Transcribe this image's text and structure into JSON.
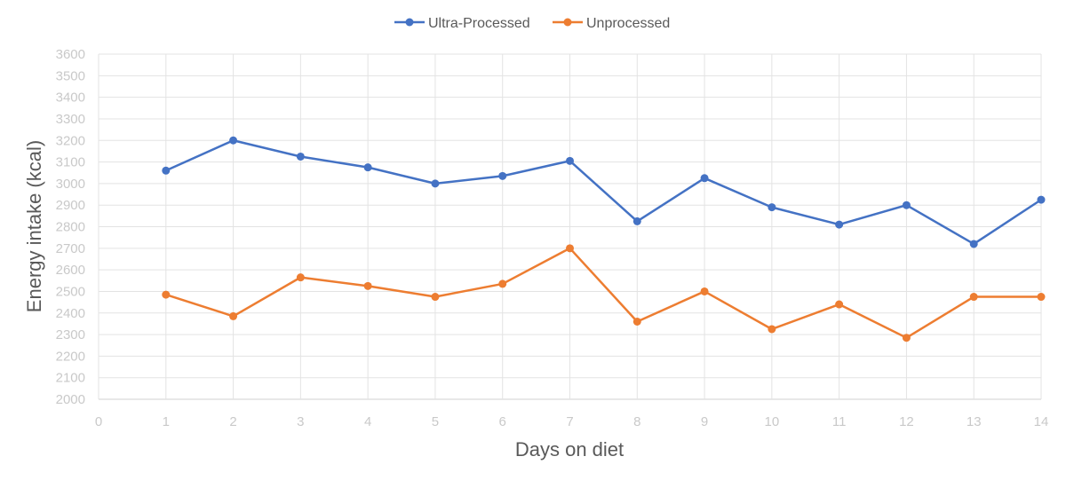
{
  "chart_data": {
    "type": "line",
    "title": "",
    "xlabel": "Days on diet",
    "ylabel": "Energy intake (kcal)",
    "xlim": [
      0,
      14
    ],
    "ylim": [
      2000,
      3600
    ],
    "x_ticks": [
      "0",
      "1",
      "2",
      "3",
      "4",
      "5",
      "6",
      "7",
      "8",
      "9",
      "10",
      "11",
      "12",
      "13",
      "14"
    ],
    "y_ticks": [
      "2000",
      "2100",
      "2200",
      "2300",
      "2400",
      "2500",
      "2600",
      "2700",
      "2800",
      "2900",
      "3000",
      "3100",
      "3200",
      "3300",
      "3400",
      "3500",
      "3600"
    ],
    "grid": true,
    "legend_position": "top-center",
    "x": [
      1,
      2,
      3,
      4,
      5,
      6,
      7,
      8,
      9,
      10,
      11,
      12,
      13,
      14
    ],
    "series": [
      {
        "name": "Ultra-Processed",
        "color": "#4472c4",
        "values": [
          3060,
          3200,
          3125,
          3075,
          3000,
          3035,
          3105,
          2825,
          3025,
          2890,
          2810,
          2900,
          2720,
          2925
        ]
      },
      {
        "name": "Unprocessed",
        "color": "#ed7d31",
        "values": [
          2485,
          2385,
          2565,
          2525,
          2475,
          2535,
          2700,
          2360,
          2500,
          2325,
          2440,
          2285,
          2475,
          2475
        ]
      }
    ]
  }
}
